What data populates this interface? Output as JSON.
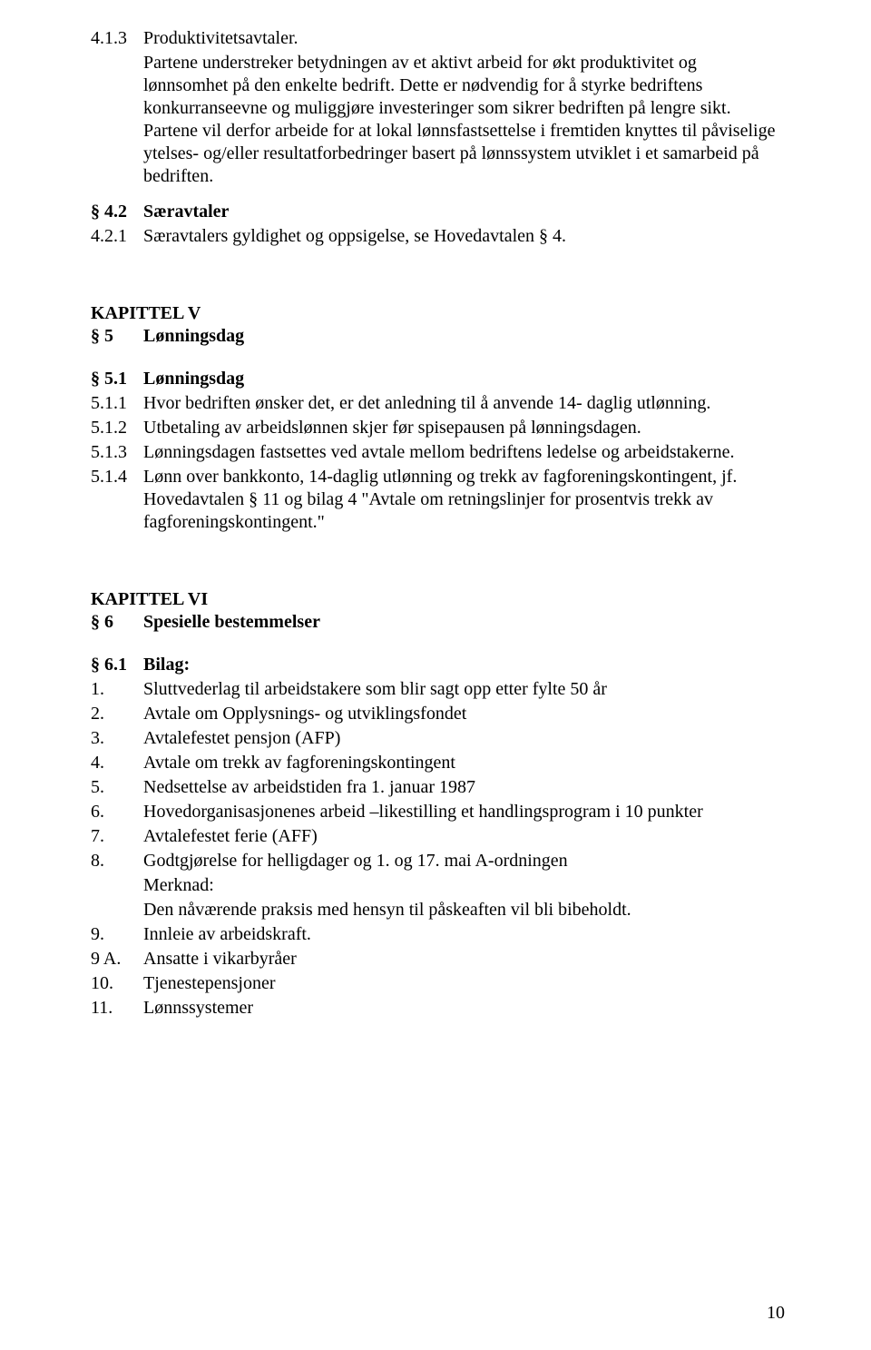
{
  "s413": {
    "num": "4.1.3",
    "title": "Produktivitetsavtaler.",
    "para": "Partene understreker betydningen av et aktivt arbeid for økt produktivitet og lønnsomhet på den enkelte bedrift. Dette er nødvendig for å styrke bedriftens konkurranseevne og muliggjøre investeringer som sikrer bedriften på lengre sikt. Partene vil derfor arbeide for at lokal lønnsfastsettelse i fremtiden knyttes til påviselige ytelses- og/eller resultatforbedringer basert på lønnssystem utviklet i et samarbeid på bedriften."
  },
  "s42": {
    "num": "§ 4.2",
    "title": "Særavtaler"
  },
  "s421": {
    "num": "4.2.1",
    "text": "Særavtalers gyldighet og oppsigelse, se Hovedavtalen § 4."
  },
  "kapV": {
    "label": "KAPITTEL V"
  },
  "s5": {
    "num": "§ 5",
    "title": "Lønningsdag"
  },
  "s51": {
    "num": "§ 5.1",
    "title": "Lønningsdag"
  },
  "s511": {
    "num": "5.1.1",
    "text": "Hvor bedriften ønsker det, er det anledning til å anvende 14- daglig utlønning."
  },
  "s512": {
    "num": "5.1.2",
    "text": "Utbetaling av arbeidslønnen skjer før spisepausen på lønningsdagen."
  },
  "s513": {
    "num": "5.1.3",
    "text": "Lønningsdagen fastsettes ved avtale mellom bedriftens ledelse og arbeidstakerne."
  },
  "s514": {
    "num": "5.1.4",
    "text": "Lønn over bankkonto, 14-daglig utlønning og trekk av fagforeningskontingent, jf. Hovedavtalen § 11 og bilag 4 \"Avtale om retningslinjer for prosentvis trekk av fagforeningskontingent.\""
  },
  "kapVI": {
    "label": "KAPITTEL VI"
  },
  "s6": {
    "num": "§ 6",
    "title": "Spesielle bestemmelser"
  },
  "s61": {
    "num": "§ 6.1",
    "title": "Bilag:"
  },
  "b1": {
    "num": "1.",
    "text": "Sluttvederlag til arbeidstakere som blir sagt opp etter fylte 50 år"
  },
  "b2": {
    "num": "2.",
    "text": "Avtale om Opplysnings- og utviklingsfondet"
  },
  "b3": {
    "num": "3.",
    "text": "Avtalefestet pensjon (AFP)"
  },
  "b4": {
    "num": "4.",
    "text": "Avtale om trekk av fagforeningskontingent"
  },
  "b5": {
    "num": "5.",
    "text": "Nedsettelse av arbeidstiden fra 1. januar 1987"
  },
  "b6": {
    "num": "6.",
    "text": "Hovedorganisasjonenes arbeid –likestilling et handlingsprogram i 10 punkter"
  },
  "b7": {
    "num": "7.",
    "text": "Avtalefestet ferie (AFF)"
  },
  "b8": {
    "num": "8.",
    "text": "Godtgjørelse for helligdager og 1. og 17. mai A-ordningen"
  },
  "b8m1": {
    "text": "Merknad:"
  },
  "b8m2": {
    "text": "Den nåværende praksis med hensyn til påskeaften vil bli bibeholdt."
  },
  "b9": {
    "num": "9.",
    "text": "Innleie av arbeidskraft."
  },
  "b9a": {
    "num": "9 A.",
    "text": "Ansatte i vikarbyråer"
  },
  "b10": {
    "num": "10.",
    "text": "Tjenestepensjoner"
  },
  "b11": {
    "num": "11.",
    "text": "Lønnssystemer"
  },
  "pagenum": "10"
}
